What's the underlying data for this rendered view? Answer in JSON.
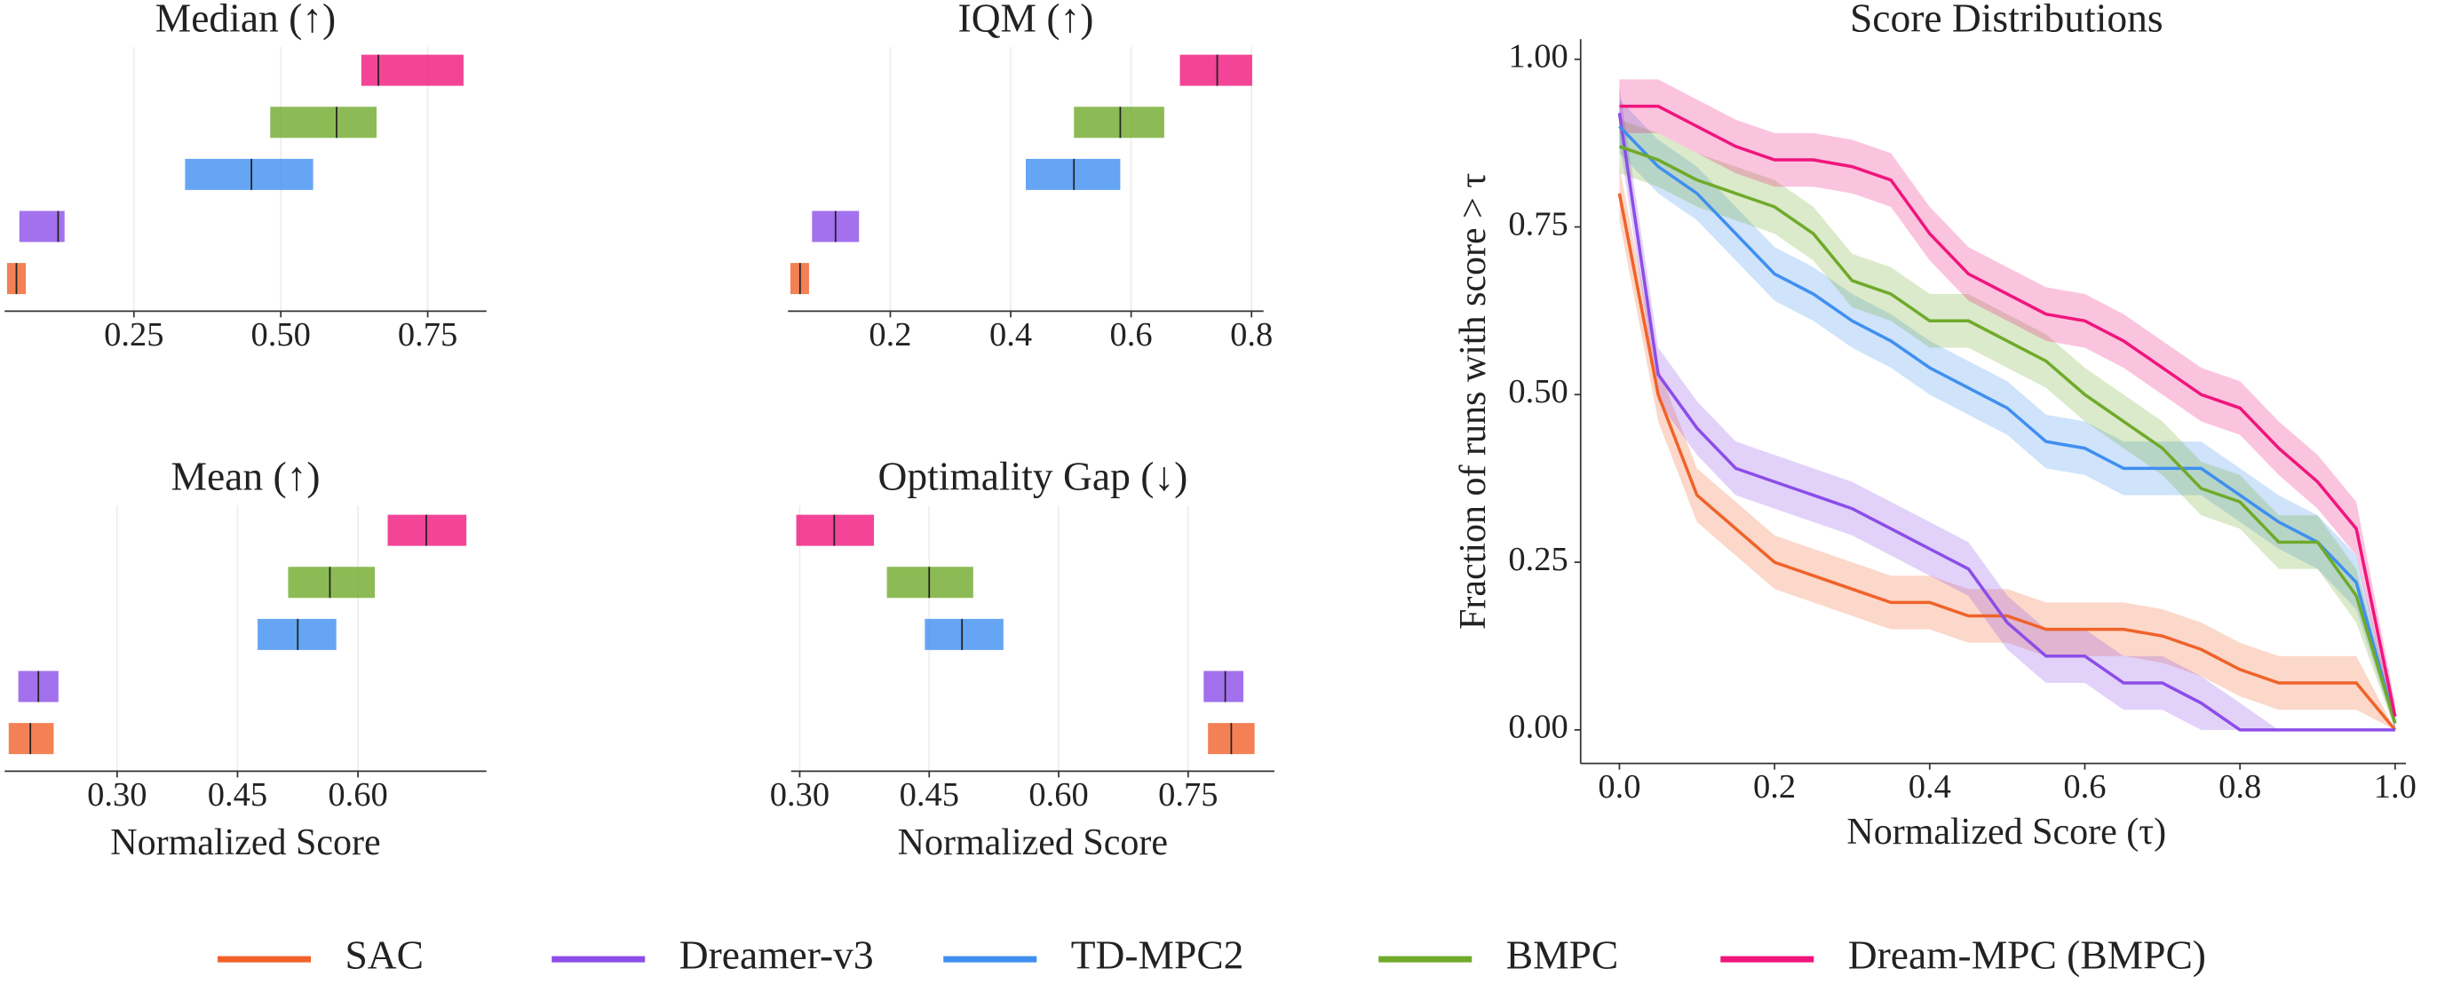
{
  "chart_data": [
    {
      "type": "interval",
      "title": "Median (↑)",
      "xlim": [
        0.03,
        0.85
      ],
      "xticks": [
        0.25,
        {
          "value": 0.5,
          "label": "0.50"
        },
        0.75
      ],
      "grid": true,
      "colors": [
        "#f0622a",
        "#8c4de8",
        "#3f8ff0",
        "#6faa2a",
        "#f0157d"
      ],
      "low": [
        0.034,
        0.055,
        0.337,
        0.482,
        0.637
      ],
      "point": [
        0.05,
        0.121,
        0.45,
        0.595,
        0.666
      ],
      "high": [
        0.066,
        0.132,
        0.555,
        0.663,
        0.811
      ]
    },
    {
      "type": "interval",
      "title": "IQM (↑)",
      "xlim": [
        0.03,
        0.82
      ],
      "xticks": [
        0.2,
        0.4,
        0.6,
        0.8
      ],
      "grid": true,
      "colors": [
        "#f0622a",
        "#8c4de8",
        "#3f8ff0",
        "#6faa2a",
        "#f0157d"
      ],
      "low": [
        0.034,
        0.07,
        0.425,
        0.505,
        0.681
      ],
      "point": [
        0.05,
        0.109,
        0.505,
        0.582,
        0.743
      ],
      "high": [
        0.065,
        0.148,
        0.582,
        0.655,
        0.801
      ]
    },
    {
      "type": "interval",
      "title": "Mean (↑)",
      "xlabel": "Normalized Score",
      "xlim": [
        0.16,
        0.76
      ],
      "xticks": [
        {
          "value": 0.3,
          "label": "0.30"
        },
        0.45,
        {
          "value": 0.6,
          "label": "0.60"
        }
      ],
      "grid": true,
      "colors": [
        "#f0622a",
        "#8c4de8",
        "#3f8ff0",
        "#6faa2a",
        "#f0157d"
      ],
      "low": [
        0.165,
        0.177,
        0.475,
        0.513,
        0.637
      ],
      "point": [
        0.192,
        0.202,
        0.525,
        0.565,
        0.685
      ],
      "high": [
        0.221,
        0.227,
        0.573,
        0.621,
        0.735
      ]
    },
    {
      "type": "interval",
      "title": "Optimality Gap (↓)",
      "xlabel": "Normalized Score",
      "xlim": [
        0.29,
        0.85
      ],
      "xticks": [
        {
          "value": 0.3,
          "label": "0.30"
        },
        0.45,
        {
          "value": 0.6,
          "label": "0.60"
        },
        0.75
      ],
      "grid": true,
      "colors": [
        "#f0622a",
        "#8c4de8",
        "#3f8ff0",
        "#6faa2a",
        "#f0157d"
      ],
      "low": [
        0.773,
        0.768,
        0.445,
        0.401,
        0.296
      ],
      "point": [
        0.8,
        0.793,
        0.488,
        0.45,
        0.34
      ],
      "high": [
        0.827,
        0.814,
        0.536,
        0.501,
        0.386
      ]
    },
    {
      "type": "line",
      "title": "Score Distributions",
      "xlabel": "Normalized Score (τ)",
      "ylabel": "Fraction of runs with score > τ",
      "xlim": [
        -0.05,
        1.05
      ],
      "ylim": [
        -0.05,
        1.03
      ],
      "xticks": [
        {
          "value": 0,
          "label": "0.0"
        },
        0.2,
        0.4,
        0.6,
        0.8,
        {
          "value": 1,
          "label": "1.0"
        }
      ],
      "yticks": [
        {
          "value": 0,
          "label": "0.00"
        },
        0.25,
        {
          "value": 0.5,
          "label": "0.50"
        },
        0.75,
        {
          "value": 1,
          "label": "1.00"
        }
      ],
      "x": [
        0,
        0.05,
        0.1,
        0.15,
        0.2,
        0.25,
        0.3,
        0.35,
        0.4,
        0.45,
        0.5,
        0.55,
        0.6,
        0.65,
        0.7,
        0.75,
        0.8,
        0.85,
        0.9,
        0.95,
        1
      ],
      "series": [
        {
          "name": "SAC",
          "color": "#f0622a",
          "values": [
            0.8,
            0.5,
            0.35,
            0.3,
            0.25,
            0.23,
            0.21,
            0.19,
            0.19,
            0.17,
            0.17,
            0.15,
            0.15,
            0.15,
            0.14,
            0.12,
            0.09,
            0.07,
            0.07,
            0.07,
            0
          ],
          "lower": [
            0.76,
            0.46,
            0.31,
            0.26,
            0.21,
            0.19,
            0.17,
            0.15,
            0.15,
            0.13,
            0.13,
            0.11,
            0.11,
            0.11,
            0.1,
            0.08,
            0.05,
            0.03,
            0.03,
            0.03,
            0
          ],
          "upper": [
            0.84,
            0.54,
            0.39,
            0.34,
            0.29,
            0.27,
            0.25,
            0.23,
            0.23,
            0.21,
            0.21,
            0.19,
            0.19,
            0.19,
            0.18,
            0.16,
            0.13,
            0.11,
            0.11,
            0.11,
            0
          ]
        },
        {
          "name": "Dreamer-v3",
          "color": "#8c4de8",
          "values": [
            0.92,
            0.53,
            0.45,
            0.39,
            0.37,
            0.35,
            0.33,
            0.3,
            0.27,
            0.24,
            0.16,
            0.11,
            0.11,
            0.07,
            0.07,
            0.04,
            0,
            0,
            0,
            0,
            0
          ],
          "lower": [
            0.88,
            0.49,
            0.41,
            0.35,
            0.33,
            0.31,
            0.29,
            0.26,
            0.23,
            0.2,
            0.12,
            0.07,
            0.07,
            0.03,
            0.03,
            0,
            0,
            0,
            0,
            0,
            0
          ],
          "upper": [
            0.96,
            0.57,
            0.49,
            0.43,
            0.41,
            0.39,
            0.37,
            0.34,
            0.31,
            0.28,
            0.2,
            0.15,
            0.15,
            0.11,
            0.11,
            0.08,
            0.04,
            0,
            0,
            0,
            0
          ]
        },
        {
          "name": "TD-MPC2",
          "color": "#3f8ff0",
          "values": [
            0.9,
            0.84,
            0.8,
            0.74,
            0.68,
            0.65,
            0.61,
            0.58,
            0.54,
            0.51,
            0.48,
            0.43,
            0.42,
            0.39,
            0.39,
            0.39,
            0.35,
            0.31,
            0.28,
            0.22,
            0.01
          ],
          "lower": [
            0.86,
            0.8,
            0.76,
            0.7,
            0.64,
            0.61,
            0.57,
            0.54,
            0.5,
            0.47,
            0.44,
            0.39,
            0.38,
            0.35,
            0.35,
            0.35,
            0.31,
            0.27,
            0.24,
            0.18,
            0
          ],
          "upper": [
            0.94,
            0.88,
            0.84,
            0.78,
            0.72,
            0.69,
            0.65,
            0.62,
            0.58,
            0.55,
            0.52,
            0.47,
            0.46,
            0.43,
            0.43,
            0.43,
            0.39,
            0.35,
            0.32,
            0.26,
            0.02
          ]
        },
        {
          "name": "BMPC",
          "color": "#6faa2a",
          "values": [
            0.87,
            0.85,
            0.82,
            0.8,
            0.78,
            0.74,
            0.67,
            0.65,
            0.61,
            0.61,
            0.58,
            0.55,
            0.5,
            0.46,
            0.42,
            0.36,
            0.34,
            0.28,
            0.28,
            0.2,
            0.01
          ],
          "lower": [
            0.83,
            0.81,
            0.78,
            0.76,
            0.74,
            0.7,
            0.63,
            0.61,
            0.57,
            0.57,
            0.54,
            0.51,
            0.46,
            0.42,
            0.38,
            0.32,
            0.3,
            0.24,
            0.24,
            0.16,
            0
          ],
          "upper": [
            0.91,
            0.89,
            0.86,
            0.84,
            0.82,
            0.78,
            0.71,
            0.69,
            0.65,
            0.65,
            0.62,
            0.59,
            0.54,
            0.5,
            0.46,
            0.4,
            0.38,
            0.32,
            0.32,
            0.24,
            0.02
          ]
        },
        {
          "name": "Dream-MPC (BMPC)",
          "color": "#f0157d",
          "values": [
            0.93,
            0.93,
            0.9,
            0.87,
            0.85,
            0.85,
            0.84,
            0.82,
            0.74,
            0.68,
            0.65,
            0.62,
            0.61,
            0.58,
            0.54,
            0.5,
            0.48,
            0.42,
            0.37,
            0.3,
            0.02
          ],
          "lower": [
            0.89,
            0.89,
            0.86,
            0.83,
            0.81,
            0.81,
            0.8,
            0.78,
            0.7,
            0.64,
            0.61,
            0.58,
            0.57,
            0.54,
            0.5,
            0.46,
            0.44,
            0.38,
            0.33,
            0.26,
            0
          ],
          "upper": [
            0.97,
            0.97,
            0.94,
            0.91,
            0.89,
            0.89,
            0.88,
            0.86,
            0.78,
            0.72,
            0.69,
            0.66,
            0.65,
            0.62,
            0.58,
            0.54,
            0.52,
            0.46,
            0.41,
            0.34,
            0.04
          ]
        }
      ]
    }
  ]
}
